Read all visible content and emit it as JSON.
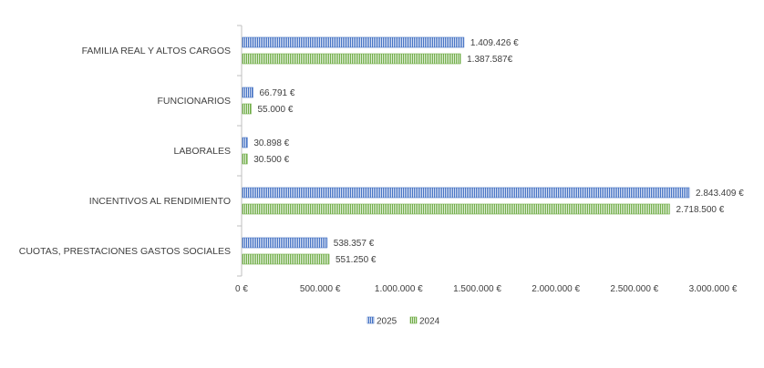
{
  "chart_data": {
    "type": "bar",
    "orientation": "horizontal",
    "title": "",
    "xlabel": "",
    "ylabel": "",
    "categories": [
      "FAMILIA REAL Y ALTOS CARGOS",
      "FUNCIONARIOS",
      "LABORALES",
      "INCENTIVOS AL RENDIMIENTO",
      "CUOTAS, PRESTACIONES  GASTOS SOCIALES"
    ],
    "series": [
      {
        "name": "2025",
        "color": "#4472C4",
        "values": [
          1409426,
          66791,
          30898,
          2843409,
          538357
        ],
        "labels": [
          "1.409.426 €",
          "66.791 €",
          "30.898 €",
          "2.843.409 €",
          "538.357 €"
        ]
      },
      {
        "name": "2024",
        "color": "#70AD47",
        "values": [
          1387587,
          55000,
          30500,
          2718500,
          551250
        ],
        "labels": [
          "1.387.587€",
          "55.000 €",
          "30.500 €",
          "2.718.500 €",
          "551.250 €"
        ]
      }
    ],
    "xlim": [
      0,
      3000000
    ],
    "ticks": [
      0,
      500000,
      1000000,
      1500000,
      2000000,
      2500000,
      3000000
    ],
    "tick_labels": [
      "0 €",
      "500.000 €",
      "1.000.000 €",
      "1.500.000 €",
      "2.000.000 €",
      "2.500.000 €",
      "3.000.000 €"
    ],
    "grid": false,
    "legend_position": "bottom"
  }
}
